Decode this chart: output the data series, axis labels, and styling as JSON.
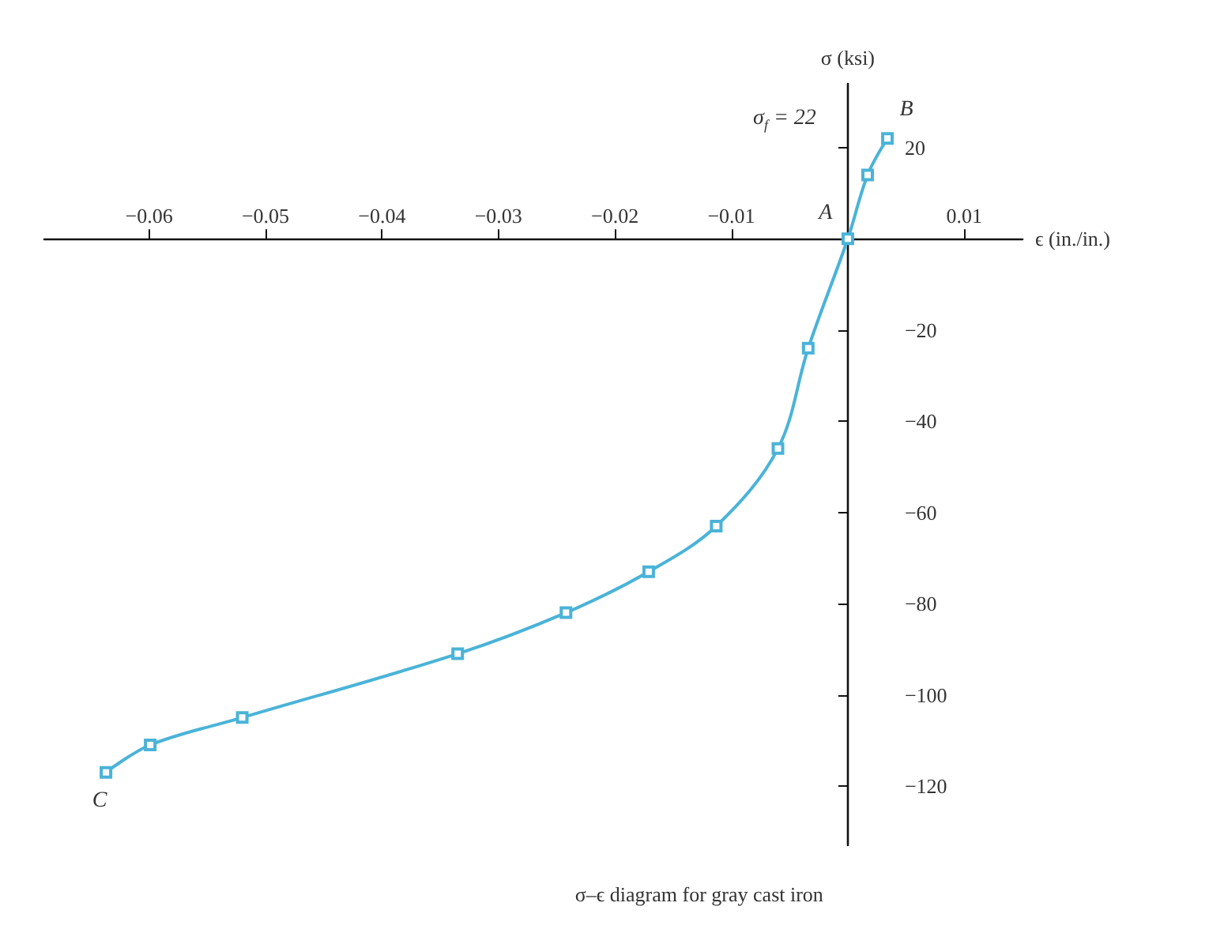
{
  "chart_data": {
    "type": "line",
    "xlabel": "ϵ (in./in.)",
    "ylabel": "σ (ksi)",
    "x": [
      -0.0637,
      -0.0599,
      -0.052,
      -0.0335,
      -0.0242,
      -0.0171,
      -0.0113,
      -0.006,
      -0.0034,
      0,
      0.0017,
      0.0034
    ],
    "series": [
      {
        "color": "#4ab3d8",
        "values": [
          -117,
          -111,
          -105,
          -91,
          -82,
          -73,
          -63,
          -46,
          -24,
          0,
          14,
          22
        ]
      }
    ],
    "xlim": [
      -0.069,
      0.015
    ],
    "ylim": [
      -133,
      34
    ],
    "xticks": [
      -0.06,
      -0.05,
      -0.04,
      -0.03,
      -0.02,
      -0.01,
      0.01
    ],
    "yticks": [
      20,
      -20,
      -40,
      -60,
      -80,
      -100,
      -120
    ],
    "marker": "square",
    "grid": false,
    "annotations": [
      {
        "text": "A",
        "x": 0,
        "y": 0
      },
      {
        "text": "B",
        "x": 0.0034,
        "y": 22
      },
      {
        "text": "C",
        "x": -0.0637,
        "y": -117
      },
      "σ$_{f}$ = 22",
      "σ–ϵ diagram for gray cast iron"
    ]
  }
}
